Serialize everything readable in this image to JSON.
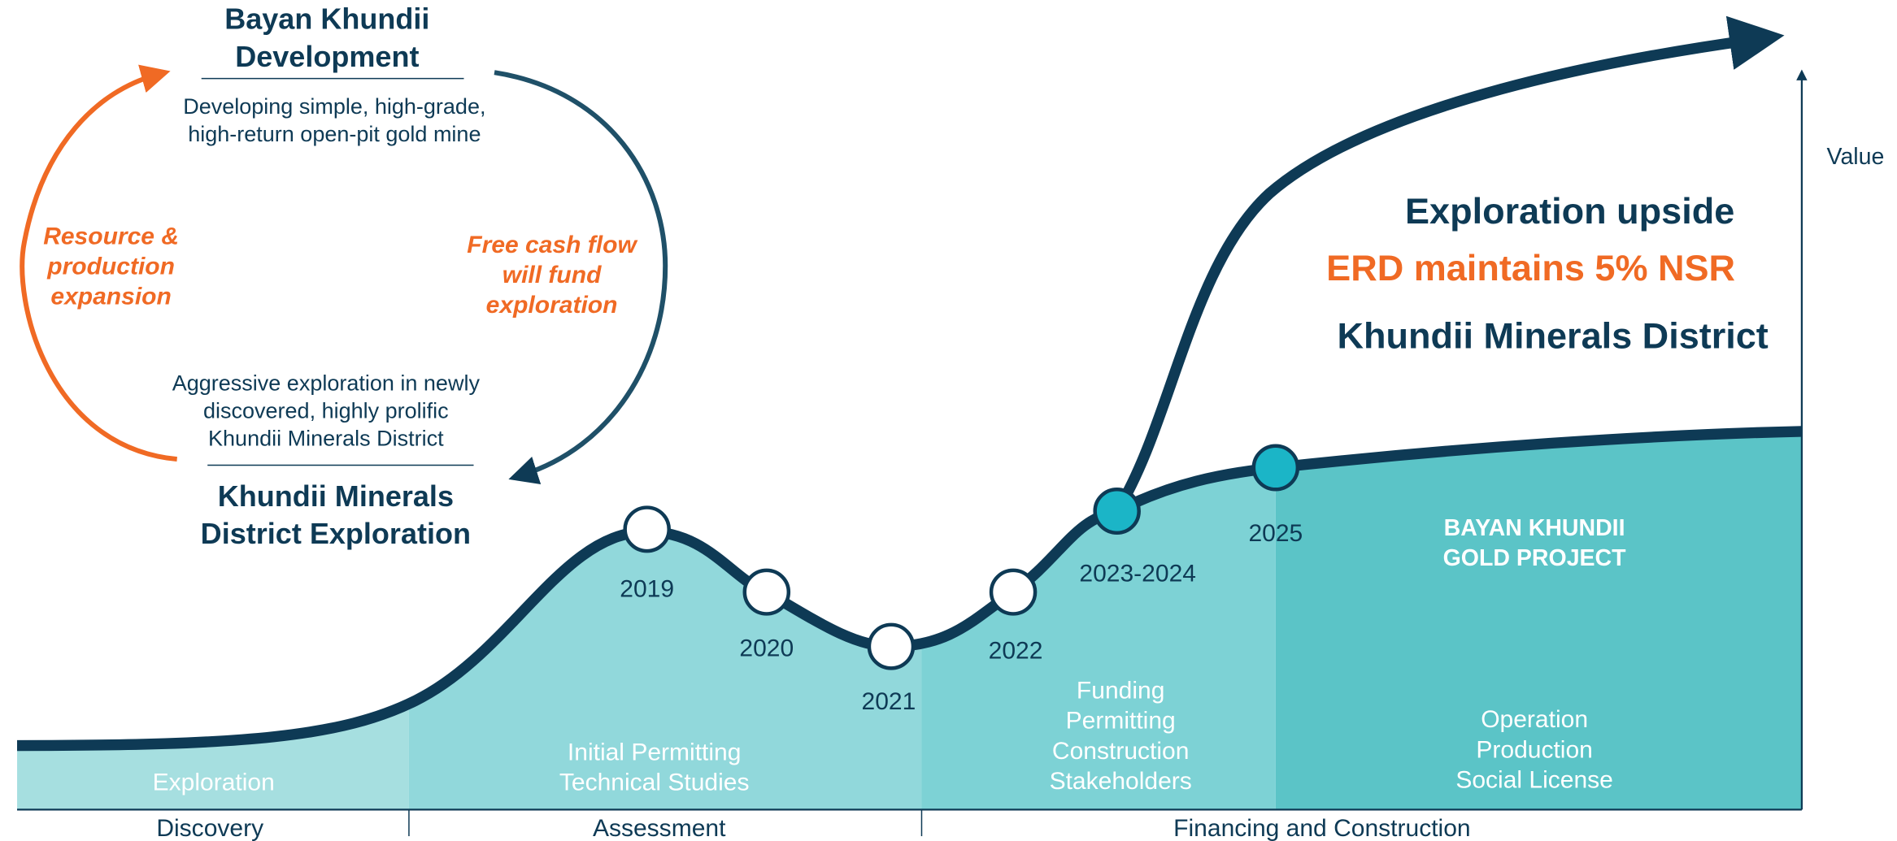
{
  "cycle": {
    "top_title": [
      "Bayan Khundii",
      "Development"
    ],
    "top_description": [
      "Developing simple, high-grade,",
      "high-return open-pit gold mine"
    ],
    "left_label": [
      "Resource &",
      "production",
      "expansion"
    ],
    "right_label": [
      "Free cash flow",
      "will fund",
      "exploration"
    ],
    "bottom_description": [
      "Aggressive exploration in newly",
      "discovered, highly prolific",
      "Khundii Minerals District"
    ],
    "bottom_title": [
      "Khundii Minerals",
      "District Exploration"
    ]
  },
  "headlines": [
    "Exploration upside",
    "ERD maintains 5% NSR",
    "Khundii Minerals District"
  ],
  "axis_label": "Value",
  "milestones": [
    "2019",
    "2020",
    "2021",
    "2022",
    "2023-2024",
    "2025"
  ],
  "stages": {
    "exploration": [
      "Exploration"
    ],
    "assessment": [
      "Initial Permitting",
      "Technical Studies"
    ],
    "financing": [
      "Funding",
      "Permitting",
      "Construction",
      "Stakeholders"
    ],
    "operation": [
      "Operation",
      "Production",
      "Social License"
    ],
    "project": [
      "BAYAN KHUNDII",
      "GOLD PROJECT"
    ]
  },
  "phases": [
    "Discovery",
    "Assessment",
    "Financing and Construction"
  ]
}
